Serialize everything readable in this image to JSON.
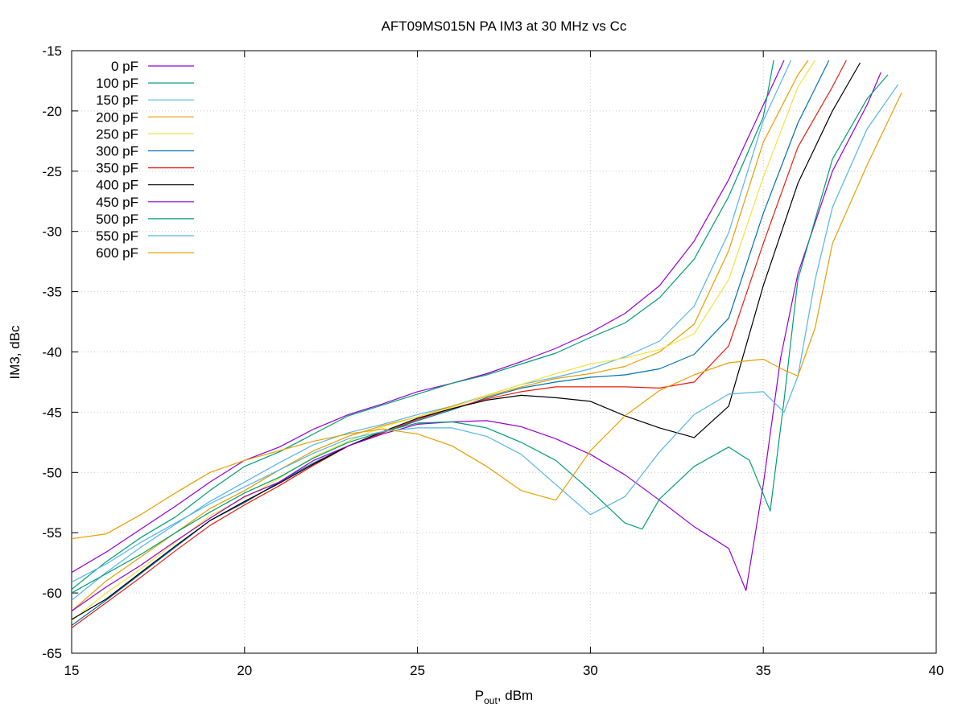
{
  "chart_data": {
    "type": "line",
    "title": "AFT09MS015N PA IM3 at 30 MHz vs Cc",
    "xlabel_main": "P",
    "xlabel_sub": "out",
    "xlabel_rest": ", dBm",
    "ylabel": "IM3, dBc",
    "xlim": [
      15,
      40
    ],
    "ylim": [
      -65,
      -15
    ],
    "x_ticks": [
      15,
      20,
      25,
      30,
      35,
      40
    ],
    "y_ticks": [
      -65,
      -60,
      -55,
      -50,
      -45,
      -40,
      -35,
      -30,
      -25,
      -20,
      -15
    ],
    "grid": true,
    "legend_position": "top-left",
    "series": [
      {
        "name": "0 pF",
        "color": "#9400D3",
        "points": [
          [
            15,
            -58.3
          ],
          [
            16,
            -56.6
          ],
          [
            17,
            -54.7
          ],
          [
            18,
            -52.8
          ],
          [
            19,
            -50.8
          ],
          [
            20,
            -49.0
          ],
          [
            21,
            -47.9
          ],
          [
            22,
            -46.4
          ],
          [
            23,
            -45.2
          ],
          [
            24,
            -44.3
          ],
          [
            25,
            -43.3
          ],
          [
            26,
            -42.6
          ],
          [
            27,
            -41.8
          ],
          [
            28,
            -40.8
          ],
          [
            29,
            -39.7
          ],
          [
            30,
            -38.4
          ],
          [
            31,
            -36.8
          ],
          [
            32,
            -34.5
          ],
          [
            33,
            -30.8
          ],
          [
            34,
            -25.7
          ],
          [
            35,
            -19.5
          ],
          [
            35.6,
            -15.8
          ]
        ]
      },
      {
        "name": "100 pF",
        "color": "#009E73",
        "points": [
          [
            15,
            -59.7
          ],
          [
            16,
            -57.4
          ],
          [
            17,
            -55.4
          ],
          [
            18,
            -53.7
          ],
          [
            19,
            -51.5
          ],
          [
            20,
            -49.5
          ],
          [
            21,
            -48.3
          ],
          [
            22,
            -46.8
          ],
          [
            23,
            -45.3
          ],
          [
            24,
            -44.4
          ],
          [
            25,
            -43.5
          ],
          [
            26,
            -42.6
          ],
          [
            27,
            -41.9
          ],
          [
            28,
            -41.0
          ],
          [
            29,
            -40.1
          ],
          [
            30,
            -38.8
          ],
          [
            31,
            -37.6
          ],
          [
            32,
            -35.5
          ],
          [
            33,
            -32.3
          ],
          [
            34,
            -27.1
          ],
          [
            35,
            -20.5
          ],
          [
            35.3,
            -15.8
          ]
        ]
      },
      {
        "name": "150 pF",
        "color": "#56B4E9",
        "points": [
          [
            15,
            -60.6
          ],
          [
            16,
            -58.3
          ],
          [
            17,
            -56.2
          ],
          [
            18,
            -54.3
          ],
          [
            19,
            -52.4
          ],
          [
            20,
            -50.8
          ],
          [
            21,
            -49.2
          ],
          [
            22,
            -47.7
          ],
          [
            23,
            -46.7
          ],
          [
            24,
            -46.0
          ],
          [
            25,
            -45.2
          ],
          [
            26,
            -44.5
          ],
          [
            27,
            -43.6
          ],
          [
            28,
            -42.7
          ],
          [
            29,
            -42.1
          ],
          [
            30,
            -41.4
          ],
          [
            31,
            -40.4
          ],
          [
            32,
            -39.1
          ],
          [
            33,
            -36.2
          ],
          [
            34,
            -30.1
          ],
          [
            35,
            -20.8
          ],
          [
            35.8,
            -15.8
          ]
        ]
      },
      {
        "name": "200 pF",
        "color": "#E69F00",
        "points": [
          [
            15,
            -61.5
          ],
          [
            16,
            -59.0
          ],
          [
            17,
            -57.0
          ],
          [
            18,
            -55.0
          ],
          [
            19,
            -53.0
          ],
          [
            20,
            -51.5
          ],
          [
            21,
            -49.8
          ],
          [
            22,
            -48.2
          ],
          [
            23,
            -47.0
          ],
          [
            24,
            -46.1
          ],
          [
            25,
            -45.4
          ],
          [
            26,
            -44.5
          ],
          [
            27,
            -43.7
          ],
          [
            28,
            -42.9
          ],
          [
            29,
            -42.2
          ],
          [
            30,
            -41.8
          ],
          [
            31,
            -41.2
          ],
          [
            32,
            -40.0
          ],
          [
            33,
            -37.7
          ],
          [
            34,
            -31.6
          ],
          [
            35,
            -22.6
          ],
          [
            36,
            -17.0
          ],
          [
            36.3,
            -15.8
          ]
        ]
      },
      {
        "name": "250 pF",
        "color": "#F0E442",
        "points": [
          [
            15,
            -62.3
          ],
          [
            16,
            -60.0
          ],
          [
            17,
            -58.0
          ],
          [
            18,
            -55.8
          ],
          [
            19,
            -53.6
          ],
          [
            20,
            -52.1
          ],
          [
            21,
            -50.5
          ],
          [
            22,
            -48.7
          ],
          [
            23,
            -47.4
          ],
          [
            24,
            -46.2
          ],
          [
            25,
            -45.4
          ],
          [
            26,
            -44.6
          ],
          [
            27,
            -43.6
          ],
          [
            28,
            -42.7
          ],
          [
            29,
            -41.8
          ],
          [
            30,
            -41.0
          ],
          [
            31,
            -40.5
          ],
          [
            32,
            -39.8
          ],
          [
            33,
            -38.5
          ],
          [
            34,
            -34.0
          ],
          [
            35,
            -25.5
          ],
          [
            36,
            -18.0
          ],
          [
            36.5,
            -15.8
          ]
        ]
      },
      {
        "name": "300 pF",
        "color": "#0072B2",
        "points": [
          [
            15,
            -62.7
          ],
          [
            16,
            -60.6
          ],
          [
            17,
            -58.4
          ],
          [
            18,
            -56.2
          ],
          [
            19,
            -54.0
          ],
          [
            20,
            -52.5
          ],
          [
            21,
            -50.8
          ],
          [
            22,
            -49.2
          ],
          [
            23,
            -47.8
          ],
          [
            24,
            -46.7
          ],
          [
            25,
            -45.7
          ],
          [
            26,
            -44.8
          ],
          [
            27,
            -43.8
          ],
          [
            28,
            -43.0
          ],
          [
            29,
            -42.5
          ],
          [
            30,
            -42.1
          ],
          [
            31,
            -41.9
          ],
          [
            32,
            -41.4
          ],
          [
            33,
            -40.2
          ],
          [
            34,
            -37.2
          ],
          [
            35,
            -28.5
          ],
          [
            36,
            -21.0
          ],
          [
            36.9,
            -15.8
          ]
        ]
      },
      {
        "name": "350 pF",
        "color": "#E51E10",
        "points": [
          [
            15,
            -62.9
          ],
          [
            16,
            -60.8
          ],
          [
            17,
            -58.7
          ],
          [
            18,
            -56.5
          ],
          [
            19,
            -54.4
          ],
          [
            20,
            -52.7
          ],
          [
            21,
            -51.1
          ],
          [
            22,
            -49.4
          ],
          [
            23,
            -47.8
          ],
          [
            24,
            -46.7
          ],
          [
            25,
            -45.6
          ],
          [
            26,
            -44.7
          ],
          [
            27,
            -43.9
          ],
          [
            28,
            -43.3
          ],
          [
            29,
            -42.9
          ],
          [
            30,
            -42.9
          ],
          [
            31,
            -42.9
          ],
          [
            32,
            -43.0
          ],
          [
            33,
            -42.5
          ],
          [
            34,
            -39.5
          ],
          [
            35,
            -31.0
          ],
          [
            36,
            -23.0
          ],
          [
            37,
            -18.0
          ],
          [
            37.4,
            -15.8
          ]
        ]
      },
      {
        "name": "400 pF",
        "color": "#000000",
        "points": [
          [
            15,
            -62.2
          ],
          [
            16,
            -60.5
          ],
          [
            17,
            -58.3
          ],
          [
            18,
            -56.1
          ],
          [
            19,
            -54.0
          ],
          [
            20,
            -52.4
          ],
          [
            21,
            -50.9
          ],
          [
            22,
            -49.3
          ],
          [
            23,
            -47.8
          ],
          [
            24,
            -46.6
          ],
          [
            25,
            -45.5
          ],
          [
            26,
            -44.7
          ],
          [
            27,
            -44.0
          ],
          [
            28,
            -43.6
          ],
          [
            29,
            -43.8
          ],
          [
            30,
            -44.1
          ],
          [
            31,
            -45.3
          ],
          [
            32,
            -46.3
          ],
          [
            33,
            -47.1
          ],
          [
            34,
            -44.5
          ],
          [
            35,
            -34.5
          ],
          [
            36,
            -26.0
          ],
          [
            37,
            -20.0
          ],
          [
            37.8,
            -16.0
          ]
        ]
      },
      {
        "name": "450 pF",
        "color": "#9400D3",
        "points": [
          [
            15,
            -61.5
          ],
          [
            16,
            -59.5
          ],
          [
            17,
            -57.7
          ],
          [
            18,
            -55.7
          ],
          [
            19,
            -53.8
          ],
          [
            20,
            -52.0
          ],
          [
            21,
            -50.8
          ],
          [
            22,
            -49.0
          ],
          [
            23,
            -47.8
          ],
          [
            24,
            -46.8
          ],
          [
            25,
            -46.0
          ],
          [
            26,
            -45.8
          ],
          [
            27,
            -45.7
          ],
          [
            28,
            -46.2
          ],
          [
            29,
            -47.2
          ],
          [
            30,
            -48.5
          ],
          [
            31,
            -50.2
          ],
          [
            32,
            -52.3
          ],
          [
            33,
            -54.5
          ],
          [
            34,
            -56.3
          ],
          [
            34.5,
            -59.8
          ],
          [
            35,
            -51.0
          ],
          [
            35.5,
            -40.5
          ],
          [
            36,
            -33.5
          ],
          [
            37,
            -25.0
          ],
          [
            38,
            -19.5
          ],
          [
            38.4,
            -16.8
          ]
        ]
      },
      {
        "name": "500 pF",
        "color": "#009E73",
        "points": [
          [
            15,
            -60.0
          ],
          [
            16,
            -58.4
          ],
          [
            17,
            -56.8
          ],
          [
            18,
            -55.0
          ],
          [
            19,
            -53.3
          ],
          [
            20,
            -51.7
          ],
          [
            21,
            -50.4
          ],
          [
            22,
            -48.8
          ],
          [
            23,
            -47.5
          ],
          [
            24,
            -46.6
          ],
          [
            25,
            -45.9
          ],
          [
            26,
            -45.8
          ],
          [
            27,
            -46.3
          ],
          [
            28,
            -47.5
          ],
          [
            29,
            -49.0
          ],
          [
            30,
            -51.5
          ],
          [
            31,
            -54.2
          ],
          [
            31.5,
            -54.7
          ],
          [
            32,
            -52.2
          ],
          [
            33,
            -49.5
          ],
          [
            34,
            -47.9
          ],
          [
            34.6,
            -49.0
          ],
          [
            35.2,
            -53.2
          ],
          [
            35.6,
            -44.0
          ],
          [
            36,
            -34.0
          ],
          [
            37,
            -24.0
          ],
          [
            38,
            -19.0
          ],
          [
            38.6,
            -17.0
          ]
        ]
      },
      {
        "name": "550 pF",
        "color": "#56B4E9",
        "points": [
          [
            15,
            -59.1
          ],
          [
            16,
            -57.6
          ],
          [
            17,
            -55.8
          ],
          [
            18,
            -54.2
          ],
          [
            19,
            -52.6
          ],
          [
            20,
            -51.2
          ],
          [
            21,
            -49.8
          ],
          [
            22,
            -48.4
          ],
          [
            23,
            -47.2
          ],
          [
            24,
            -46.6
          ],
          [
            25,
            -46.3
          ],
          [
            26,
            -46.3
          ],
          [
            27,
            -47.0
          ],
          [
            28,
            -48.5
          ],
          [
            29,
            -51.0
          ],
          [
            30,
            -53.5
          ],
          [
            31,
            -52.0
          ],
          [
            32,
            -48.3
          ],
          [
            33,
            -45.2
          ],
          [
            34,
            -43.5
          ],
          [
            35,
            -43.3
          ],
          [
            35.6,
            -45.0
          ],
          [
            36,
            -42.0
          ],
          [
            36.5,
            -34.0
          ],
          [
            37,
            -28.0
          ],
          [
            38,
            -21.5
          ],
          [
            38.9,
            -17.8
          ]
        ]
      },
      {
        "name": "600 pF",
        "color": "#E69F00",
        "points": [
          [
            15,
            -55.5
          ],
          [
            16,
            -55.1
          ],
          [
            17,
            -53.5
          ],
          [
            18,
            -51.7
          ],
          [
            19,
            -50.0
          ],
          [
            20,
            -49.0
          ],
          [
            21,
            -48.2
          ],
          [
            22,
            -47.4
          ],
          [
            23,
            -46.8
          ],
          [
            24,
            -46.4
          ],
          [
            25,
            -46.8
          ],
          [
            26,
            -47.8
          ],
          [
            27,
            -49.5
          ],
          [
            28,
            -51.5
          ],
          [
            29,
            -52.3
          ],
          [
            30,
            -48.2
          ],
          [
            31,
            -45.3
          ],
          [
            32,
            -43.2
          ],
          [
            33,
            -41.9
          ],
          [
            34,
            -40.9
          ],
          [
            35,
            -40.6
          ],
          [
            35.6,
            -41.5
          ],
          [
            36,
            -42.0
          ],
          [
            36.5,
            -38.0
          ],
          [
            37,
            -31.0
          ],
          [
            38,
            -24.5
          ],
          [
            39,
            -18.5
          ]
        ]
      }
    ]
  }
}
